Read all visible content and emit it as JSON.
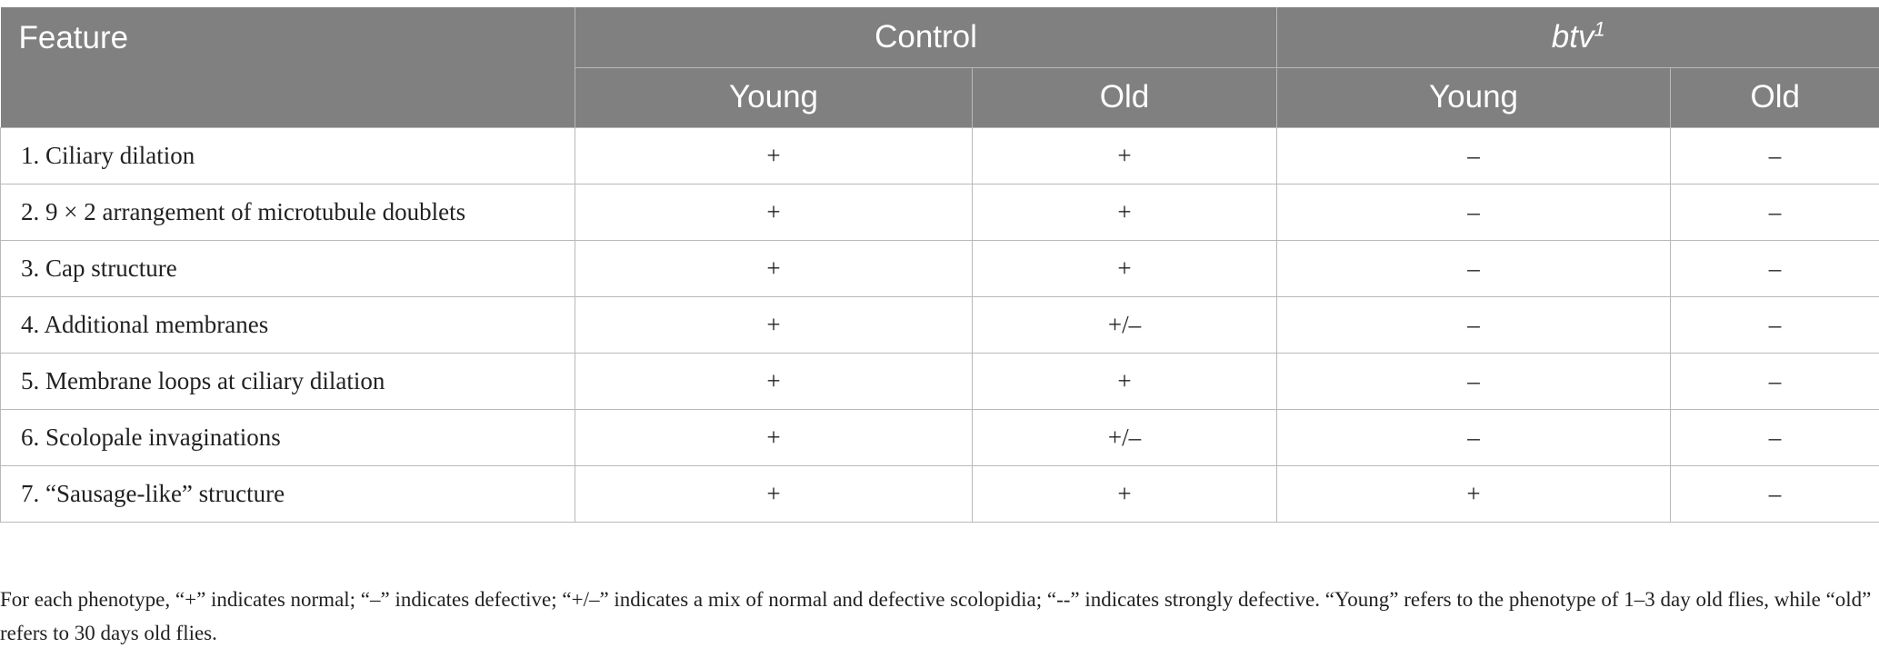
{
  "table": {
    "header_row1": {
      "feature": "Feature",
      "control": "Control",
      "btv_text": "btv",
      "btv_sup": "1"
    },
    "header_row2": [
      "Young",
      "Old",
      "Young",
      "Old"
    ],
    "rows": [
      {
        "feature": "1. Ciliary dilation",
        "cells": [
          "+",
          "+",
          "–",
          "–"
        ]
      },
      {
        "feature": "2. 9 × 2 arrangement of microtubule doublets",
        "cells": [
          "+",
          "+",
          "–",
          "–"
        ]
      },
      {
        "feature": "3. Cap structure",
        "cells": [
          "+",
          "+",
          "–",
          "–"
        ]
      },
      {
        "feature": "4. Additional membranes",
        "cells": [
          "+",
          "+/–",
          "–",
          "–"
        ]
      },
      {
        "feature": "5. Membrane loops at ciliary dilation",
        "cells": [
          "+",
          "+",
          "–",
          "–"
        ]
      },
      {
        "feature": "6. Scolopale invaginations",
        "cells": [
          "+",
          "+/–",
          "–",
          "–"
        ]
      },
      {
        "feature": "7. “Sausage-like” structure",
        "cells": [
          "+",
          "+",
          "+",
          "–"
        ]
      }
    ]
  },
  "footnote": "For each phenotype, “+” indicates normal; “–” indicates defective; “+/–” indicates a mix of normal and defective scolopidia; “--” indicates strongly defective. “Young” refers to the phenotype of 1–3 day old flies, while “old” refers to 30 days old flies.",
  "colors": {
    "header_bg": "#7f807f",
    "header_text": "#ffffff",
    "grid_line": "#b9b9b9",
    "body_text": "#222222"
  }
}
